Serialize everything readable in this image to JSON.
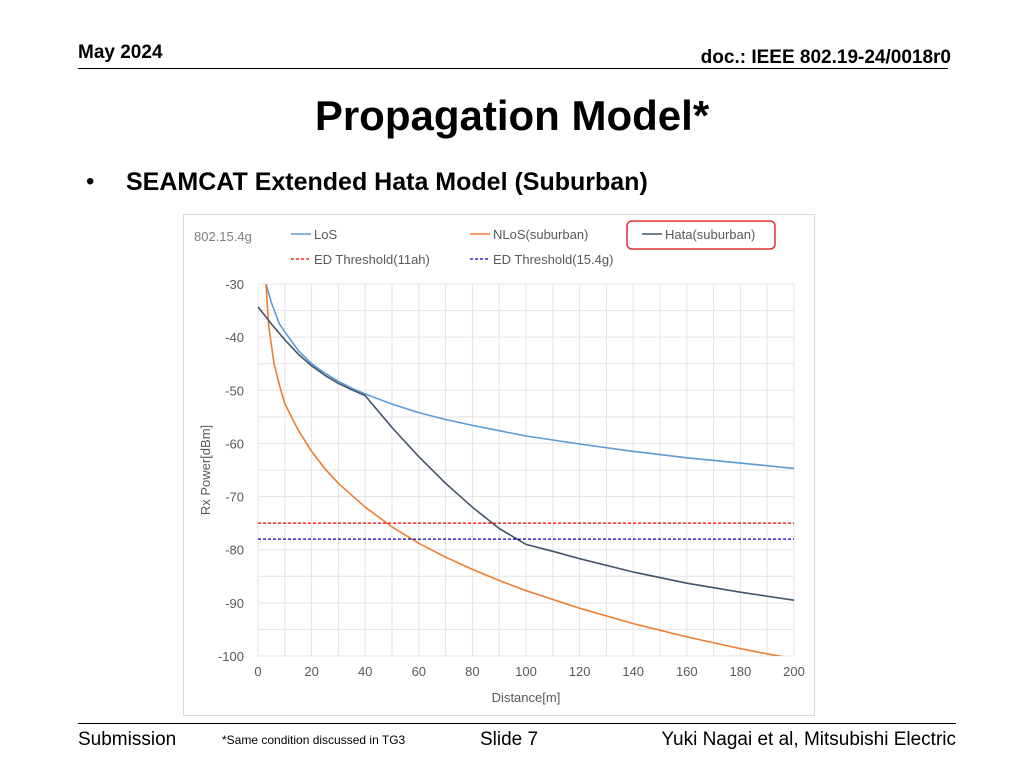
{
  "header": {
    "date": "May 2024",
    "doc": "doc.: IEEE 802.19-24/0018r0"
  },
  "title": "Propagation Model*",
  "bullet": "SEAMCAT Extended Hata Model (Suburban)",
  "footer": {
    "submission": "Submission",
    "note": "*Same condition discussed in TG3",
    "slide": "Slide 7",
    "author": "Yuki Nagai et al, Mitsubishi Electric"
  },
  "chart_data": {
    "type": "line",
    "corner_label": "802.15.4g",
    "xlabel": "Distance[m]",
    "ylabel": "Rx Power[dBm]",
    "xlim": [
      0,
      200
    ],
    "ylim": [
      -100,
      -30
    ],
    "x_ticks": [
      0,
      20,
      40,
      60,
      80,
      100,
      120,
      140,
      160,
      180,
      200
    ],
    "y_ticks": [
      -30,
      -40,
      -50,
      -60,
      -70,
      -80,
      -90,
      -100
    ],
    "grid": true,
    "legend_position": "top",
    "highlighted_legend_entry": "Hata(suburban)",
    "series": [
      {
        "name": "LoS",
        "color": "#5b9bd5",
        "dash": false,
        "points": [
          [
            3,
            -30
          ],
          [
            5,
            -33.5
          ],
          [
            8,
            -37.5
          ],
          [
            10,
            -39
          ],
          [
            15,
            -42.5
          ],
          [
            20,
            -45
          ],
          [
            25,
            -46.8
          ],
          [
            30,
            -48.3
          ],
          [
            35,
            -49.6
          ],
          [
            40,
            -50.7
          ],
          [
            50,
            -52.6
          ],
          [
            60,
            -54.2
          ],
          [
            70,
            -55.5
          ],
          [
            80,
            -56.6
          ],
          [
            90,
            -57.6
          ],
          [
            100,
            -58.6
          ],
          [
            120,
            -60.1
          ],
          [
            140,
            -61.5
          ],
          [
            160,
            -62.7
          ],
          [
            180,
            -63.7
          ],
          [
            200,
            -64.7
          ]
        ]
      },
      {
        "name": "NLoS(suburban)",
        "color": "#ed7d31",
        "dash": false,
        "points": [
          [
            3,
            -30
          ],
          [
            4,
            -38
          ],
          [
            6,
            -45
          ],
          [
            8,
            -49
          ],
          [
            10,
            -52.5
          ],
          [
            15,
            -57.5
          ],
          [
            20,
            -61.5
          ],
          [
            25,
            -64.8
          ],
          [
            30,
            -67.5
          ],
          [
            40,
            -72
          ],
          [
            50,
            -75.7
          ],
          [
            60,
            -78.8
          ],
          [
            70,
            -81.4
          ],
          [
            80,
            -83.7
          ],
          [
            90,
            -85.8
          ],
          [
            100,
            -87.7
          ],
          [
            120,
            -91
          ],
          [
            140,
            -93.9
          ],
          [
            160,
            -96.4
          ],
          [
            180,
            -98.6
          ],
          [
            190,
            -99.6
          ],
          [
            200,
            -100.5
          ]
        ]
      },
      {
        "name": "Hata(suburban)",
        "color": "#44546a",
        "dash": false,
        "points": [
          [
            0,
            -34.3
          ],
          [
            5,
            -37.5
          ],
          [
            10,
            -40.5
          ],
          [
            15,
            -43.2
          ],
          [
            20,
            -45.4
          ],
          [
            25,
            -47.2
          ],
          [
            30,
            -48.7
          ],
          [
            35,
            -49.9
          ],
          [
            40,
            -51
          ],
          [
            50,
            -57
          ],
          [
            60,
            -62.5
          ],
          [
            70,
            -67.5
          ],
          [
            80,
            -72
          ],
          [
            90,
            -76
          ],
          [
            100,
            -79
          ],
          [
            110,
            -80.3
          ],
          [
            120,
            -81.7
          ],
          [
            140,
            -84.2
          ],
          [
            160,
            -86.3
          ],
          [
            180,
            -88
          ],
          [
            200,
            -89.5
          ]
        ]
      },
      {
        "name": "ED Threshold(11ah)",
        "color": "#ff0000",
        "dash": true,
        "points": [
          [
            0,
            -75
          ],
          [
            200,
            -75
          ]
        ]
      },
      {
        "name": "ED Threshold(15.4g)",
        "color": "#0000cc",
        "dash": true,
        "points": [
          [
            0,
            -78
          ],
          [
            200,
            -78
          ]
        ]
      }
    ]
  }
}
